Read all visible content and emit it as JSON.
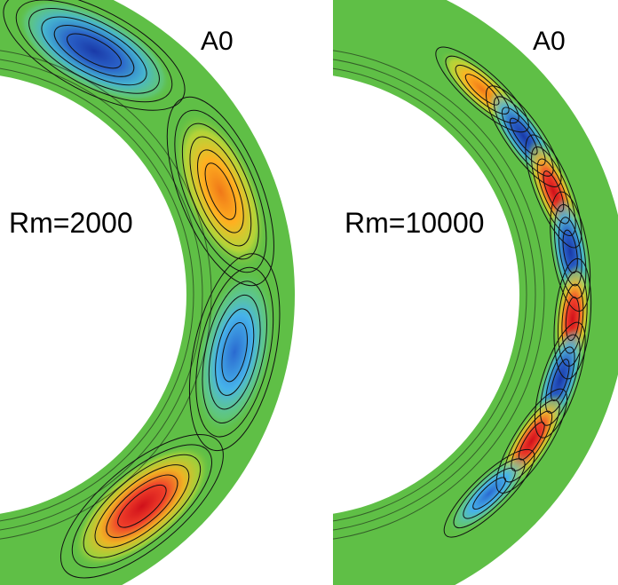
{
  "panels": [
    {
      "mode_label": "A0",
      "rm_label": "Rm=2000",
      "blobs": [
        {
          "color": "#1f3fb0",
          "theta": 62,
          "strength": 1.0
        },
        {
          "color": "#ffa500",
          "theta": 22,
          "strength": 0.8
        },
        {
          "color": "#3fa0e6",
          "theta": -12,
          "strength": 0.7
        },
        {
          "color": "#e0241c",
          "theta": -50,
          "strength": 1.0
        }
      ]
    },
    {
      "mode_label": "A0",
      "rm_label": "Rm=10000",
      "blobs": [
        {
          "color": "#ffa500",
          "theta": 48
        },
        {
          "color": "#2a5ac8",
          "theta": 35
        },
        {
          "color": "#e0241c",
          "theta": 22
        },
        {
          "color": "#2a5ac8",
          "theta": 9
        },
        {
          "color": "#e0241c",
          "theta": -5
        },
        {
          "color": "#2a5ac8",
          "theta": -18
        },
        {
          "color": "#e0241c",
          "theta": -32
        },
        {
          "color": "#4a8ad8",
          "theta": -46
        }
      ]
    }
  ],
  "colors": {
    "background_green": "#5fbf46",
    "positive_red": "#e0241c",
    "negative_blue": "#1f3fb0",
    "contour": "#111111"
  }
}
